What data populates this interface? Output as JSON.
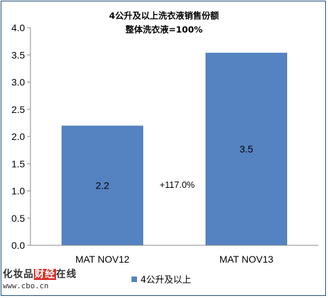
{
  "chart_data": {
    "type": "bar",
    "title": "4公升及以上洗衣液销售份额",
    "subtitle": "整体洗衣液=100%",
    "categories": [
      "MAT NOV12",
      "MAT NOV13"
    ],
    "series": [
      {
        "name": "4公升及以上",
        "values": [
          2.2,
          3.54
        ],
        "labels": [
          "2.2",
          "3.5"
        ],
        "color": "#5582c0"
      }
    ],
    "ylim": [
      0,
      4.0
    ],
    "yticks": [
      "0.0",
      "0.5",
      "1.0",
      "1.5",
      "2.0",
      "2.5",
      "3.0",
      "3.5",
      "4.0"
    ],
    "annotation": "+117.0%",
    "grid": false,
    "legend_position": "bottom"
  },
  "watermark": {
    "brand_pre": "化妆品",
    "brand_hl": "财经",
    "brand_post": "在线",
    "url": "www.cbo.cn"
  }
}
